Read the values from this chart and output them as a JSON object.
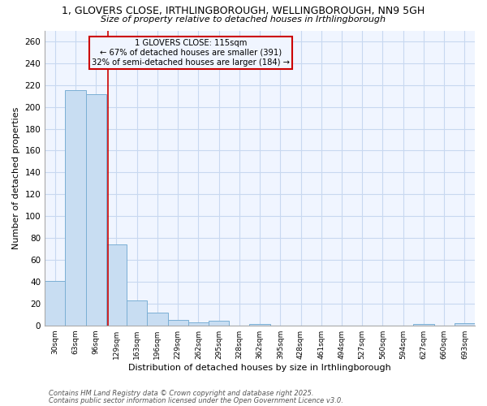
{
  "title1": "1, GLOVERS CLOSE, IRTHLINGBOROUGH, WELLINGBOROUGH, NN9 5GH",
  "title2": "Size of property relative to detached houses in Irthlingborough",
  "xlabel": "Distribution of detached houses by size in Irthlingborough",
  "ylabel": "Number of detached properties",
  "categories": [
    "30sqm",
    "63sqm",
    "96sqm",
    "129sqm",
    "163sqm",
    "196sqm",
    "229sqm",
    "262sqm",
    "295sqm",
    "328sqm",
    "362sqm",
    "395sqm",
    "428sqm",
    "461sqm",
    "494sqm",
    "527sqm",
    "560sqm",
    "594sqm",
    "627sqm",
    "660sqm",
    "693sqm"
  ],
  "values": [
    41,
    215,
    212,
    74,
    23,
    12,
    5,
    3,
    4,
    0,
    1,
    0,
    0,
    0,
    0,
    0,
    0,
    0,
    1,
    0,
    2
  ],
  "bar_color": "#c8ddf2",
  "bar_edgecolor": "#7bafd4",
  "background_color": "#ffffff",
  "plot_bg_color": "#f0f5ff",
  "grid_color": "#c8d8f0",
  "annotation_text": "1 GLOVERS CLOSE: 115sqm\n← 67% of detached houses are smaller (391)\n32% of semi-detached houses are larger (184) →",
  "annotation_box_edgecolor": "#cc0000",
  "vline_color": "#cc0000",
  "ylim": [
    0,
    270
  ],
  "yticks": [
    0,
    20,
    40,
    60,
    80,
    100,
    120,
    140,
    160,
    180,
    200,
    220,
    240,
    260
  ],
  "footnote1": "Contains HM Land Registry data © Crown copyright and database right 2025.",
  "footnote2": "Contains public sector information licensed under the Open Government Licence v3.0."
}
